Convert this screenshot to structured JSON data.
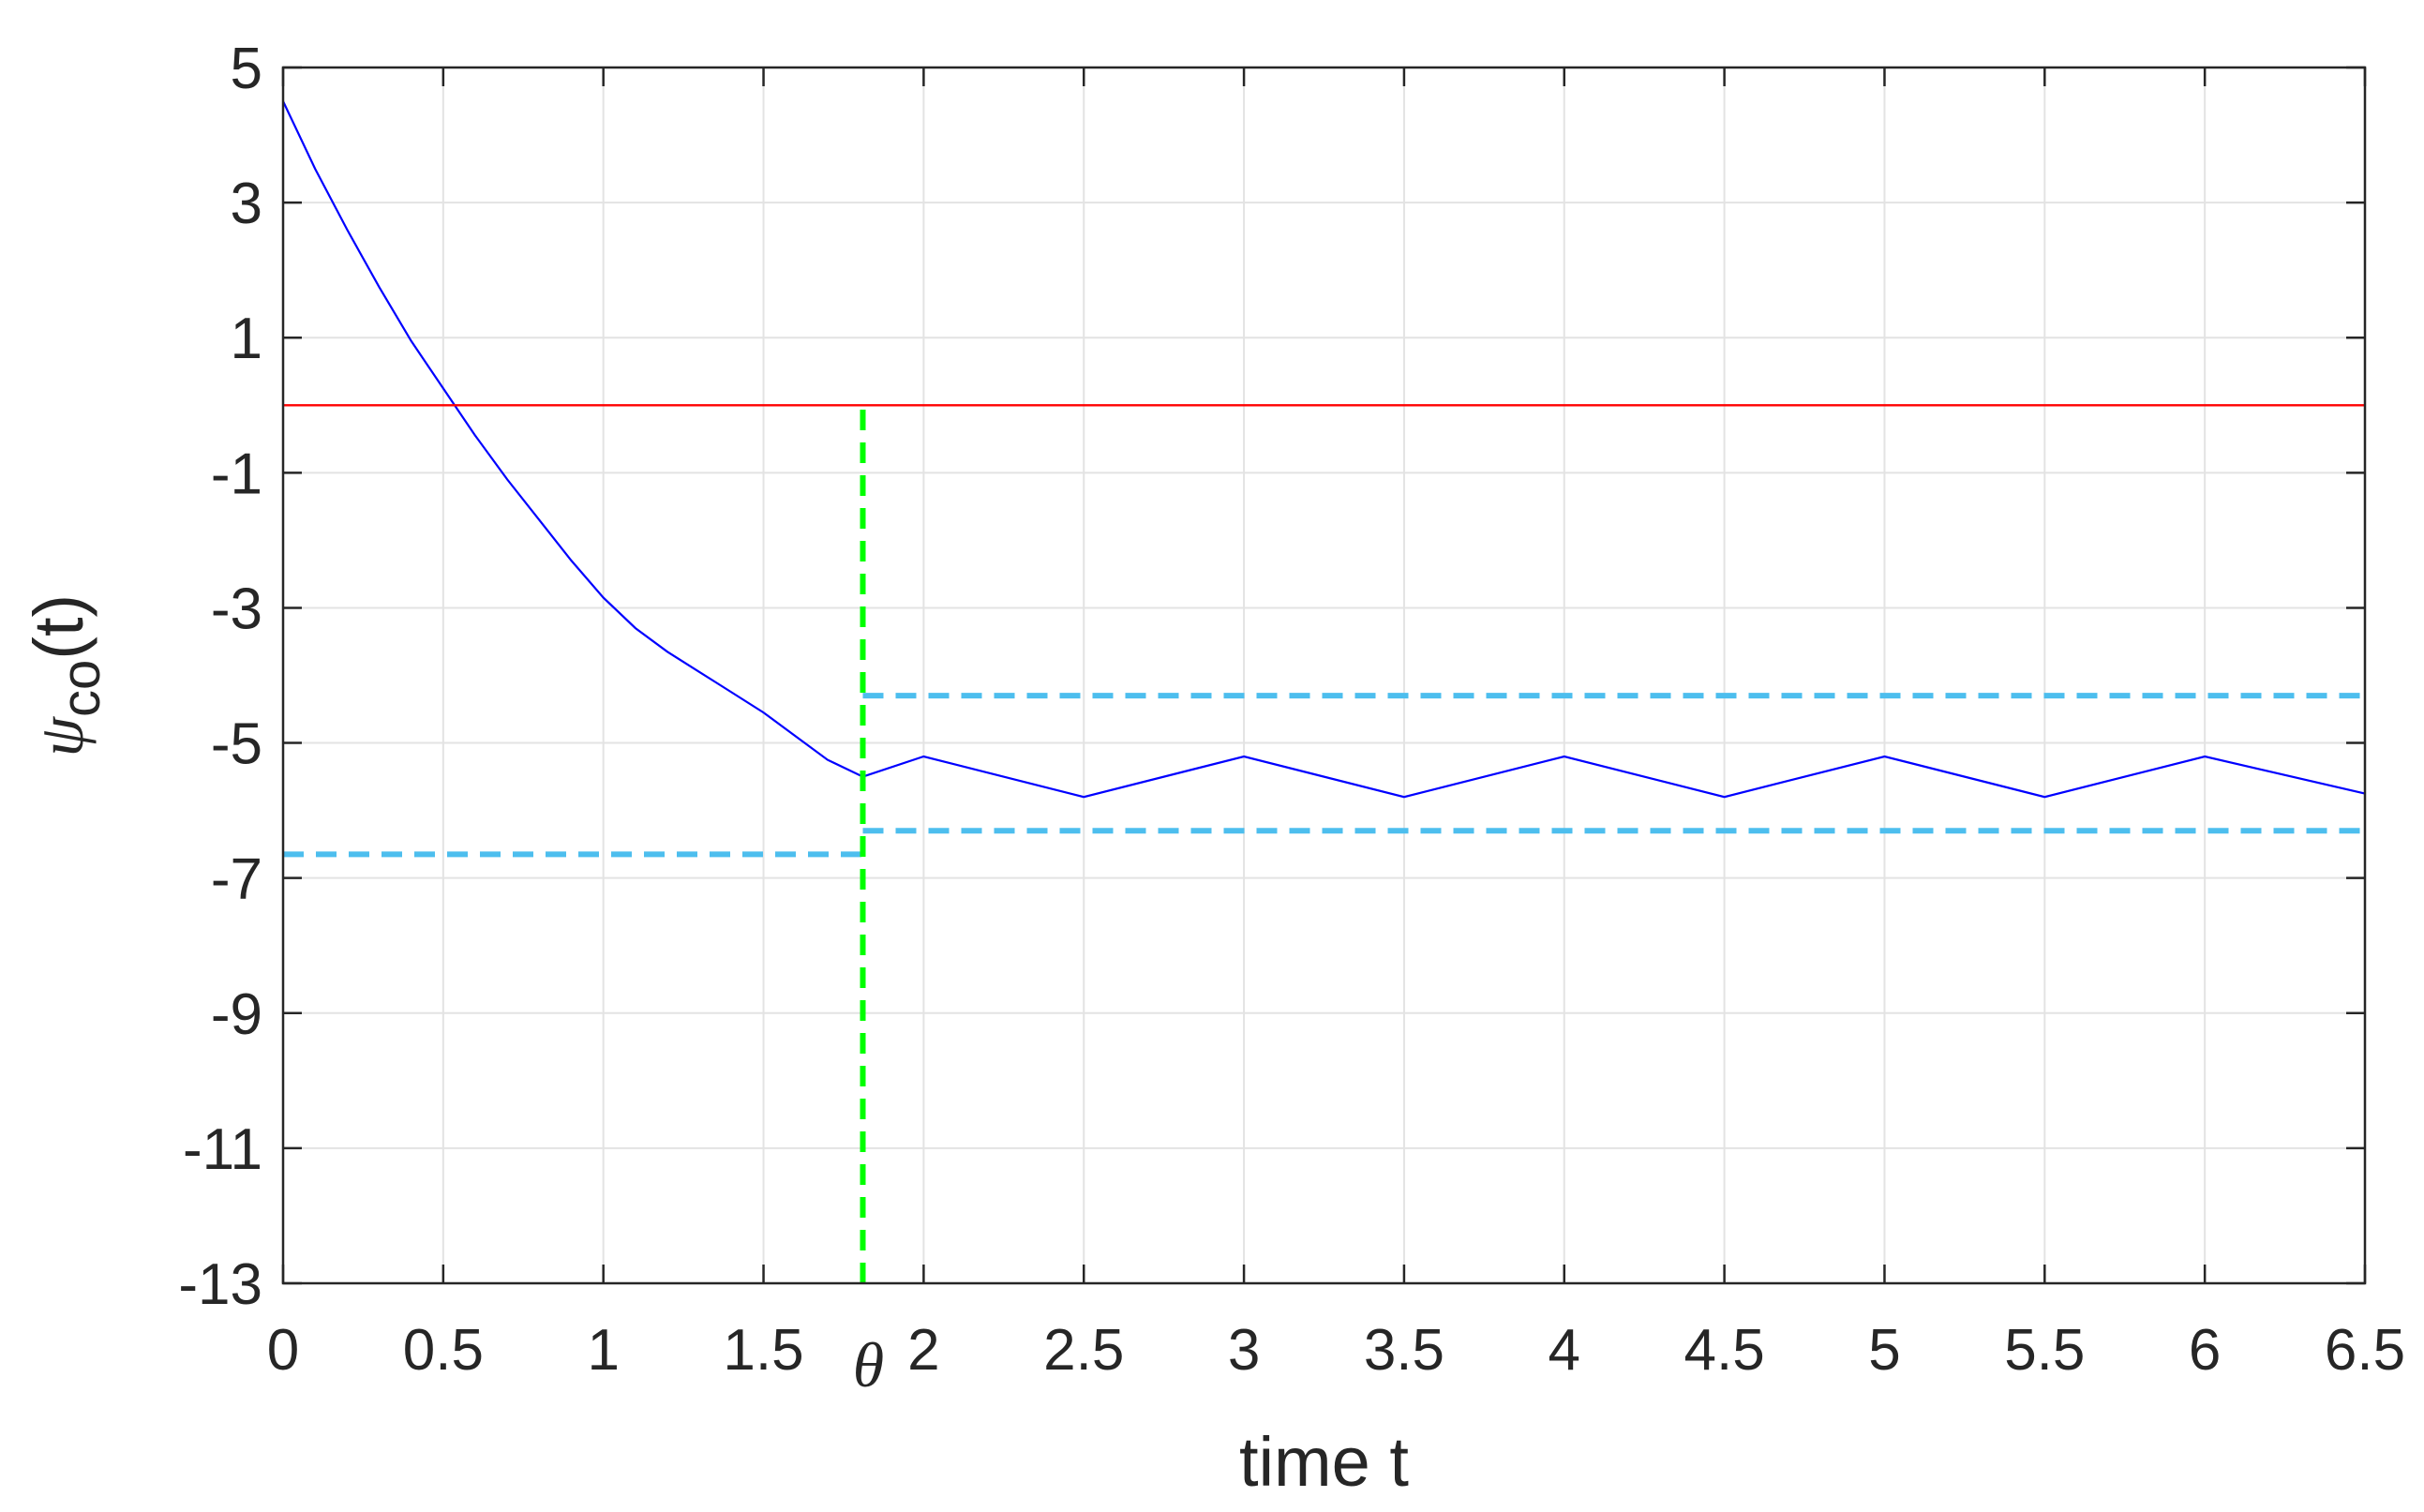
{
  "chart_data": {
    "type": "line",
    "xlabel": "time t",
    "ylabel": {
      "symbol": "ψ",
      "subscript": "co",
      "suffix": "(t)"
    },
    "xlim": [
      0,
      6.5
    ],
    "ylim": [
      -13,
      5
    ],
    "grid": true,
    "xticks": [
      0,
      0.5,
      1,
      1.5,
      2,
      2.5,
      3,
      3.5,
      4,
      4.5,
      5,
      5.5,
      6,
      6.5
    ],
    "xtick_labels": [
      "0",
      "0.5",
      "1",
      "1.5",
      "2",
      "2.5",
      "3",
      "3.5",
      "4",
      "4.5",
      "5",
      "5.5",
      "6",
      "6.5"
    ],
    "yticks": [
      5,
      3,
      1,
      -1,
      -3,
      -5,
      -7,
      -9,
      -11,
      -13
    ],
    "ytick_labels": [
      "5",
      "3",
      "1",
      "-1",
      "-3",
      "-5",
      "-7",
      "-9",
      "-11",
      "-13"
    ],
    "annotations": [
      {
        "text": "θ",
        "x": 1.81
      }
    ],
    "colors": {
      "trajectory": "#0000ff",
      "zero_line": "#ff0000",
      "bounds": "#4dbeee",
      "theta_line": "#00ff00"
    },
    "series": [
      {
        "style": "solid",
        "color": "#0000ff",
        "x": [
          0,
          0.1,
          0.2,
          0.3,
          0.4,
          0.5,
          0.6,
          0.7,
          0.8,
          0.9,
          1.0,
          1.1,
          1.2,
          1.3,
          1.4,
          1.5,
          1.6,
          1.7,
          1.81,
          2.0,
          2.5,
          3.0,
          3.5,
          4.0,
          4.5,
          5.0,
          5.5,
          6.0,
          6.5
        ],
        "y": [
          4.5,
          3.5,
          2.6,
          1.75,
          0.95,
          0.25,
          -0.45,
          -1.1,
          -1.7,
          -2.3,
          -2.85,
          -3.3,
          -3.65,
          -3.95,
          -4.25,
          -4.55,
          -4.9,
          -5.25,
          -5.5,
          -5.2,
          -5.8,
          -5.2,
          -5.8,
          -5.2,
          -5.8,
          -5.2,
          -5.8,
          -5.2,
          -5.75
        ]
      },
      {
        "style": "solid",
        "color": "#ff0000",
        "x": [
          0,
          6.5
        ],
        "y": [
          0,
          0
        ]
      },
      {
        "style": "dashed",
        "color": "#4dbeee",
        "x": [
          0,
          1.81
        ],
        "y": [
          -6.65,
          -6.65
        ]
      },
      {
        "style": "dashed",
        "color": "#4dbeee",
        "x": [
          1.81,
          6.5
        ],
        "y": [
          -4.3,
          -4.3
        ]
      },
      {
        "style": "dashed",
        "color": "#4dbeee",
        "x": [
          1.81,
          6.5
        ],
        "y": [
          -6.3,
          -6.3
        ]
      },
      {
        "style": "dashed",
        "color": "#00ff00",
        "x": [
          1.81,
          1.81
        ],
        "y": [
          -13,
          0
        ]
      }
    ]
  }
}
